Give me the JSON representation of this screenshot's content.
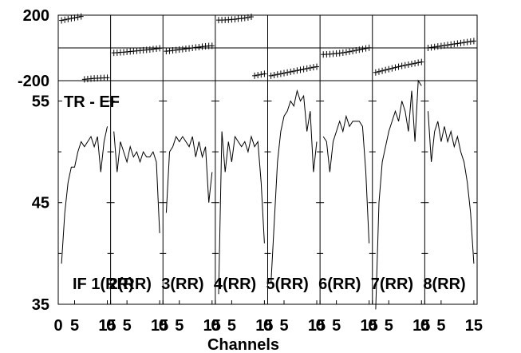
{
  "chart_data": {
    "type": "line",
    "title": "TR - EF",
    "xlabel": "Channels",
    "x_tick_labels": [
      "0",
      "5",
      "15"
    ],
    "x_range": [
      0,
      16
    ],
    "phase_ylim": [
      -200,
      200
    ],
    "phase_tick_labels": [
      "200",
      "-200"
    ],
    "amp_ylim": [
      35,
      57
    ],
    "amp_tick_labels": [
      "55",
      "45",
      "35"
    ],
    "channels": [
      1,
      2,
      3,
      4,
      5,
      6,
      7,
      8,
      9,
      10,
      11,
      12,
      13,
      14,
      15
    ],
    "panels": [
      {
        "label": "IF 1(RR)",
        "phase": [
          168,
          172,
          176,
          180,
          184,
          188,
          192,
          -192,
          -190,
          -188,
          -186,
          -185,
          -184,
          -183,
          -182
        ],
        "amp": [
          39,
          44,
          47,
          48.5,
          48.5,
          50,
          51,
          50.5,
          51,
          51.5,
          50.5,
          51.5,
          48,
          51,
          52.5
        ]
      },
      {
        "label": "2(RR)",
        "phase": [
          -30,
          -29,
          -27,
          -26,
          -24,
          -22,
          -20,
          -18,
          -16,
          -14,
          -12,
          -10,
          -7,
          -5,
          -2
        ],
        "amp": [
          52,
          48,
          51,
          50,
          49,
          50.5,
          49.5,
          50,
          49,
          50,
          49.5,
          49.5,
          50,
          49,
          42
        ]
      },
      {
        "label": "3(RR)",
        "phase": [
          -20,
          -18,
          -15,
          -13,
          -10,
          -8,
          -5,
          -3,
          0,
          3,
          5,
          8,
          10,
          12,
          13
        ],
        "amp": [
          44,
          50,
          50.5,
          51.5,
          51,
          51.5,
          51,
          50.5,
          51.5,
          49.5,
          51,
          49.5,
          50.5,
          45,
          48
        ]
      },
      {
        "label": "4(RR)",
        "phase": [
          170,
          170,
          171,
          172,
          174,
          175,
          178,
          180,
          183,
          186,
          190,
          -170,
          -166,
          -162,
          -158
        ],
        "amp": [
          36,
          52,
          48,
          51,
          49,
          51.5,
          51,
          50.5,
          51,
          50,
          51.5,
          50.5,
          51,
          47,
          41
        ]
      },
      {
        "label": "5(RR)",
        "phase": [
          -170,
          -166,
          -162,
          -158,
          -154,
          -150,
          -146,
          -142,
          -138,
          -134,
          -130,
          -126,
          -122,
          -118,
          -115
        ],
        "amp": [
          37,
          43,
          49,
          52,
          53.5,
          54,
          55,
          54.5,
          56,
          55,
          55.5,
          52,
          54,
          48,
          51
        ]
      },
      {
        "label": "6(RR)",
        "phase": [
          -40,
          -39,
          -38,
          -36,
          -34,
          -32,
          -29,
          -26,
          -23,
          -19,
          -15,
          -11,
          -7,
          -3,
          1
        ],
        "amp": [
          51.5,
          51,
          48,
          51,
          52,
          53,
          52,
          53.5,
          52.5,
          53,
          53,
          53,
          52.5,
          48,
          41
        ]
      },
      {
        "label": "7(RR)",
        "phase": [
          -150,
          -145,
          -140,
          -135,
          -130,
          -125,
          -120,
          -115,
          -110,
          -106,
          -102,
          -98,
          -94,
          -90,
          -86
        ],
        "amp": [
          34.5,
          45,
          49,
          50.5,
          52,
          53,
          54,
          53,
          55,
          54,
          52,
          56,
          51,
          57,
          56.5
        ]
      },
      {
        "label": "8(RR)",
        "phase": [
          0,
          3,
          6,
          9,
          12,
          15,
          18,
          21,
          24,
          27,
          30,
          33,
          36,
          39,
          42
        ],
        "amp": [
          54,
          49,
          52,
          53,
          51,
          52.5,
          51,
          52,
          50.5,
          51.5,
          50,
          49,
          47,
          44,
          39
        ]
      }
    ]
  }
}
